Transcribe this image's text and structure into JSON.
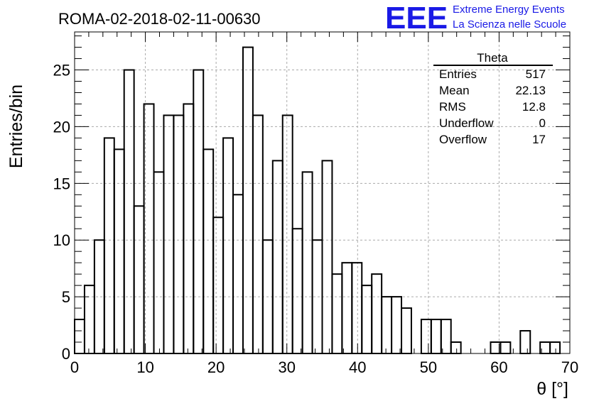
{
  "chart_data": {
    "type": "bar",
    "title": "ROMA-02-2018-02-11-00630",
    "xlabel": "θ [°]",
    "ylabel": "Entries/bin",
    "xlim": [
      0,
      70
    ],
    "ylim": [
      0,
      28.35
    ],
    "grid": true,
    "bin_width": 1.4,
    "bin_starts": [
      0,
      1.4,
      2.8,
      4.2,
      5.6,
      7.0,
      8.4,
      9.8,
      11.2,
      12.6,
      14.0,
      15.4,
      16.8,
      18.2,
      19.6,
      21.0,
      22.4,
      23.8,
      25.2,
      26.6,
      28.0,
      29.4,
      30.8,
      32.2,
      33.6,
      35.0,
      36.4,
      37.8,
      39.2,
      40.6,
      42.0,
      43.4,
      44.8,
      46.2,
      47.6,
      49.0,
      50.4,
      51.8,
      53.2,
      54.6,
      56.0,
      57.4,
      58.8,
      60.2,
      61.6,
      63.0,
      64.4,
      65.8,
      67.2,
      68.6
    ],
    "values": [
      3,
      6,
      10,
      19,
      18,
      25,
      13,
      22,
      16,
      21,
      21,
      22,
      25,
      18,
      12,
      19,
      14,
      27,
      21,
      10,
      17,
      21,
      11,
      16,
      10,
      17,
      7,
      8,
      8,
      6,
      7,
      5,
      5,
      4,
      0,
      3,
      3,
      3,
      1,
      0,
      0,
      0,
      1,
      1,
      0,
      2,
      0,
      1,
      1,
      0
    ],
    "x_ticks": [
      "0",
      "10",
      "20",
      "30",
      "40",
      "50",
      "60",
      "70"
    ],
    "y_ticks": [
      "0",
      "5",
      "10",
      "15",
      "20",
      "25"
    ],
    "stats_box": {
      "title": "Theta",
      "rows": [
        {
          "label": "Entries",
          "value": "517"
        },
        {
          "label": "Mean",
          "value": "22.13"
        },
        {
          "label": "RMS",
          "value": "12.8"
        },
        {
          "label": "Underflow",
          "value": "0"
        },
        {
          "label": "Overflow",
          "value": "17"
        }
      ]
    }
  },
  "logo": {
    "mark": "EEE",
    "line1": "Extreme Energy Events",
    "line2": "La Scienza nelle Scuole",
    "color": "#1a1ae6"
  }
}
